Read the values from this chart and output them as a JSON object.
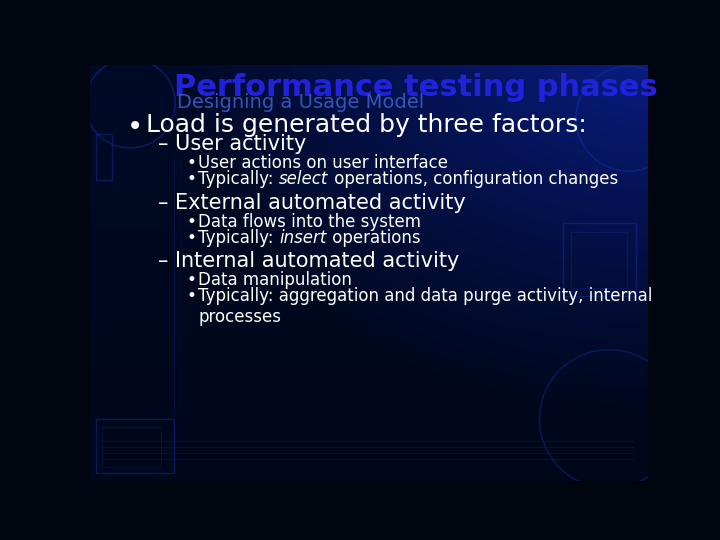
{
  "title": "Performance testing phases",
  "subtitle": "Designing a Usage Model",
  "title_color": "#2222DD",
  "subtitle_color": "#3355BB",
  "text_color": "#FFFFFF",
  "bullet_main": "Load is generated by three factors:",
  "sub_items": [
    {
      "dash": "User activity",
      "bullets": [
        {
          "pre": "User actions on user interface",
          "italic": null,
          "post": null
        },
        {
          "pre": "Typically: ",
          "italic": "select",
          "post": " operations, configuration changes"
        }
      ]
    },
    {
      "dash": "External automated activity",
      "bullets": [
        {
          "pre": "Data flows into the system",
          "italic": null,
          "post": null
        },
        {
          "pre": "Typically: ",
          "italic": "insert",
          "post": " operations"
        }
      ]
    },
    {
      "dash": "Internal automated activity",
      "bullets": [
        {
          "pre": "Data manipulation",
          "italic": null,
          "post": null
        },
        {
          "pre": "Typically: aggregation and data purge activity, internal\nprocesses",
          "italic": null,
          "post": null
        }
      ]
    }
  ],
  "title_fontsize": 22,
  "subtitle_fontsize": 14,
  "main_bullet_fontsize": 18,
  "dash_fontsize": 15,
  "sub_bullet_fontsize": 12,
  "deco_color": "#1133AA",
  "deco_alpha": 0.45
}
